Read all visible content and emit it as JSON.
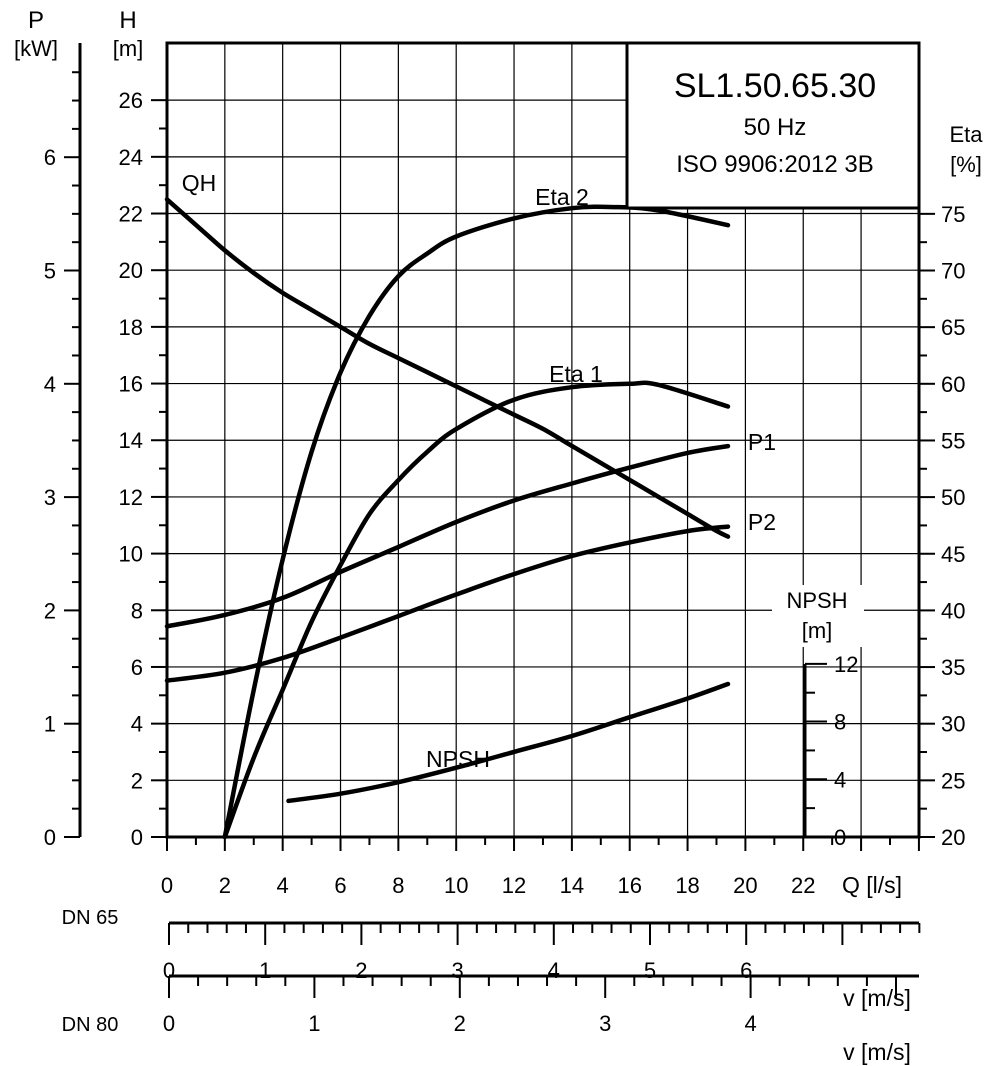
{
  "chart_data": {
    "type": "line",
    "model": "SL1.50.65.30",
    "frequency": "50 Hz",
    "standard": "ISO 9906:2012 3B",
    "x_axis": {
      "label": "Q [l/s]",
      "range": [
        0,
        26
      ],
      "tick_values": [
        0,
        2,
        4,
        6,
        8,
        10,
        12,
        14,
        16,
        18,
        20,
        22
      ]
    },
    "h_axis": {
      "label": "H",
      "unit": "[m]",
      "range": [
        0,
        26
      ],
      "tick_values": [
        0,
        2,
        4,
        6,
        8,
        10,
        12,
        14,
        16,
        18,
        20,
        22,
        24,
        26
      ]
    },
    "p_axis": {
      "label": "P",
      "unit": "[kW]",
      "range": [
        0,
        6
      ],
      "tick_values": [
        0,
        1,
        2,
        3,
        4,
        5,
        6
      ]
    },
    "eta_axis": {
      "label": "Eta",
      "unit": "[%]",
      "range": [
        20,
        75
      ],
      "tick_values": [
        20,
        25,
        30,
        35,
        40,
        45,
        50,
        55,
        60,
        65,
        70,
        75
      ]
    },
    "npsh_axis": {
      "label": "NPSH",
      "unit": "[m]",
      "range": [
        0,
        12
      ],
      "tick_values": [
        0,
        4,
        8,
        12
      ]
    },
    "velocity_scales": [
      {
        "name": "DN 65",
        "label": "v [m/s]",
        "tick_values": [
          0,
          1,
          2,
          3,
          4,
          5,
          6
        ]
      },
      {
        "name": "DN 80",
        "label": "v [m/s]",
        "tick_values": [
          0,
          1,
          2,
          3,
          4
        ]
      }
    ],
    "series": [
      {
        "name": "QH",
        "axis": "H",
        "x": [
          0,
          1,
          2,
          3,
          4,
          5,
          6,
          7,
          8,
          9,
          10,
          11,
          12,
          13,
          14,
          15,
          16,
          17,
          18,
          19,
          19.4
        ],
        "y": [
          22.5,
          21.6,
          20.7,
          19.9,
          19.2,
          18.6,
          18.0,
          17.4,
          16.9,
          16.4,
          15.9,
          15.4,
          14.9,
          14.4,
          13.8,
          13.2,
          12.6,
          12.0,
          11.4,
          10.8,
          10.6
        ]
      },
      {
        "name": "Eta 2",
        "axis": "Eta",
        "x": [
          2,
          3,
          4,
          5,
          6,
          7,
          8,
          9,
          10,
          12,
          14,
          15.5,
          17,
          19.4
        ],
        "y": [
          20,
          33,
          44.5,
          54,
          61,
          66,
          69.5,
          71.5,
          73,
          74.6,
          75.5,
          75.6,
          75.3,
          74.0
        ]
      },
      {
        "name": "Eta 1",
        "axis": "Eta",
        "x": [
          2,
          3,
          4,
          5,
          6,
          7,
          8,
          9,
          10,
          12,
          14,
          16,
          17,
          19.4
        ],
        "y": [
          20,
          27,
          33,
          39,
          44,
          48.5,
          51.5,
          54,
          56,
          58.6,
          59.7,
          60.0,
          59.9,
          58.0
        ]
      },
      {
        "name": "P1",
        "axis": "P",
        "x": [
          0,
          2,
          4,
          6,
          8,
          10,
          12,
          14,
          16,
          18,
          19.4
        ],
        "y": [
          1.86,
          1.96,
          2.11,
          2.34,
          2.56,
          2.78,
          2.97,
          3.12,
          3.26,
          3.39,
          3.45
        ]
      },
      {
        "name": "P2",
        "axis": "P",
        "x": [
          0,
          2,
          4,
          6,
          8,
          10,
          12,
          14,
          16,
          18,
          19.4
        ],
        "y": [
          1.38,
          1.45,
          1.58,
          1.76,
          1.95,
          2.14,
          2.32,
          2.48,
          2.6,
          2.7,
          2.74
        ]
      },
      {
        "name": "NPSH",
        "axis": "NPSH",
        "x": [
          4.2,
          6,
          8,
          10,
          12,
          14,
          16,
          18,
          19.4
        ],
        "y": [
          2.5,
          3.0,
          3.8,
          4.8,
          5.9,
          7.0,
          8.3,
          9.6,
          10.6
        ]
      }
    ]
  }
}
